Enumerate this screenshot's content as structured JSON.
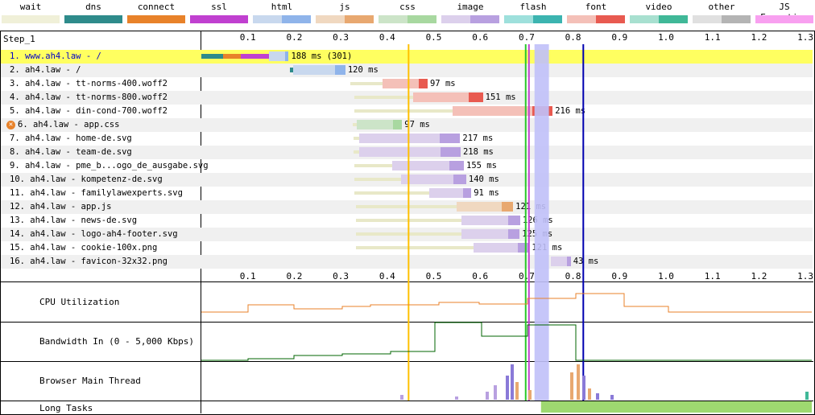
{
  "legend": [
    {
      "label": "wait",
      "colors": [
        "#f0f0d8",
        "#f0f0d8"
      ]
    },
    {
      "label": "dns",
      "colors": [
        "#2e8b8b",
        "#2e8b8b"
      ]
    },
    {
      "label": "connect",
      "colors": [
        "#e8822a",
        "#e8822a"
      ]
    },
    {
      "label": "ssl",
      "colors": [
        "#c040d0",
        "#c040d0"
      ]
    },
    {
      "label": "html",
      "colors": [
        "#c8d8ee",
        "#8fb4ea"
      ]
    },
    {
      "label": "js",
      "colors": [
        "#f0d8c0",
        "#e8a870"
      ]
    },
    {
      "label": "css",
      "colors": [
        "#cce4c8",
        "#a8d8a0"
      ]
    },
    {
      "label": "image",
      "colors": [
        "#dcd0ec",
        "#b8a0e0"
      ]
    },
    {
      "label": "flash",
      "colors": [
        "#9ee0dc",
        "#3cb4b0"
      ]
    },
    {
      "label": "font",
      "colors": [
        "#f4c0b8",
        "#e85a50"
      ]
    },
    {
      "label": "video",
      "colors": [
        "#a8e0d0",
        "#40b898"
      ]
    },
    {
      "label": "other",
      "colors": [
        "#e0e0e0",
        "#b4b4b4"
      ]
    },
    {
      "label": "JS Execution",
      "colors": [
        "#f8a0f0",
        "#f8a0f0"
      ]
    }
  ],
  "step_label": "Step_1",
  "time_ticks": [
    "0.1",
    "0.2",
    "0.3",
    "0.4",
    "0.5",
    "0.6",
    "0.7",
    "0.8",
    "0.9",
    "1.0",
    "1.1",
    "1.2",
    "1.3"
  ],
  "requests": [
    {
      "label": "1. www.ah4.law - /",
      "highlight": true,
      "icon": "",
      "start": 0.0,
      "end": 0.188,
      "pre": [
        [
          0.0,
          0.047,
          "#2e8b8b"
        ],
        [
          0.047,
          0.085,
          "#e8822a"
        ],
        [
          0.085,
          0.145,
          "#c040d0"
        ]
      ],
      "type": "html",
      "duration": "188 ms (301)"
    },
    {
      "label": "2. ah4.law - /",
      "icon": "",
      "start": 0.19,
      "end": 0.31,
      "pre": [
        [
          0.19,
          0.197,
          "#2e8b8b"
        ]
      ],
      "type": "html",
      "duration": "120 ms"
    },
    {
      "label": "3. ah4.law - tt-norms-400.woff2",
      "icon": "",
      "start": 0.32,
      "end": 0.417,
      "wait": 0.39,
      "type": "font",
      "duration": "97 ms"
    },
    {
      "label": "4. ah4.law - tt-norms-800.woff2",
      "icon": "",
      "start": 0.33,
      "end": 0.481,
      "wait": 0.455,
      "type": "font",
      "duration": "151 ms"
    },
    {
      "label": "5. ah4.law - din-cond-700.woff2",
      "icon": "",
      "start": 0.33,
      "end": 0.546,
      "wait": 0.54,
      "type": "font",
      "duration": "216 ms"
    },
    {
      "label": "6. ah4.law - app.css",
      "icon": "error",
      "start": 0.325,
      "end": 0.422,
      "wait": 0.335,
      "type": "css",
      "duration": "97 ms"
    },
    {
      "label": "7. ah4.law - home-de.svg",
      "icon": "",
      "start": 0.328,
      "end": 0.545,
      "wait": 0.34,
      "type": "image",
      "duration": "217 ms"
    },
    {
      "label": "8. ah4.law - team-de.svg",
      "icon": "",
      "start": 0.328,
      "end": 0.546,
      "wait": 0.34,
      "type": "image",
      "duration": "218 ms"
    },
    {
      "label": "9. ah4.law - pme_b...ogo_de_ausgabe.svg",
      "icon": "",
      "start": 0.33,
      "end": 0.485,
      "wait": 0.41,
      "type": "image",
      "duration": "155 ms"
    },
    {
      "label": "10. ah4.law - kompetenz-de.svg",
      "icon": "",
      "start": 0.33,
      "end": 0.47,
      "wait": 0.43,
      "type": "image",
      "duration": "140 ms"
    },
    {
      "label": "11. ah4.law - familylawexperts.svg",
      "icon": "",
      "start": 0.33,
      "end": 0.421,
      "wait": 0.49,
      "type": "image",
      "duration": "91 ms"
    },
    {
      "label": "12. ah4.law - app.js",
      "icon": "",
      "start": 0.333,
      "end": 0.454,
      "wait": 0.55,
      "type": "js",
      "duration": "121 ms"
    },
    {
      "label": "13. ah4.law - news-de.svg",
      "icon": "",
      "start": 0.333,
      "end": 0.459,
      "wait": 0.56,
      "type": "image",
      "duration": "126 ms"
    },
    {
      "label": "14. ah4.law - logo-ah4-footer.svg",
      "icon": "",
      "start": 0.333,
      "end": 0.458,
      "wait": 0.56,
      "type": "image",
      "duration": "125 ms"
    },
    {
      "label": "15. ah4.law - cookie-100x.png",
      "icon": "",
      "start": 0.333,
      "end": 0.454,
      "wait": 0.585,
      "type": "image",
      "duration": "121 ms"
    },
    {
      "label": "16. ah4.law - favicon-32x32.png",
      "icon": "",
      "start": 0.752,
      "end": 0.795,
      "wait": 0.752,
      "type": "image",
      "duration": "43 ms"
    }
  ],
  "markers": [
    {
      "t": 0.446,
      "color": "#ffc000"
    },
    {
      "t": 0.698,
      "color": "#28c828"
    },
    {
      "t": 0.705,
      "color": "#c040d0"
    },
    {
      "t": 0.822,
      "color": "#0000b0"
    }
  ],
  "bottom_panels": {
    "cpu": "CPU Utilization",
    "bandwidth": "Bandwidth In (0 - 5,000 Kbps)",
    "main_thread": "Browser Main Thread",
    "long_tasks": "Long Tasks"
  },
  "colors": {
    "highlight": "#ffff60",
    "zebra": "#f0f0f0",
    "cpu": "#e8822a",
    "bw": "#006400",
    "longtask": "#9ed870",
    "pause": "#c0c0f8"
  }
}
